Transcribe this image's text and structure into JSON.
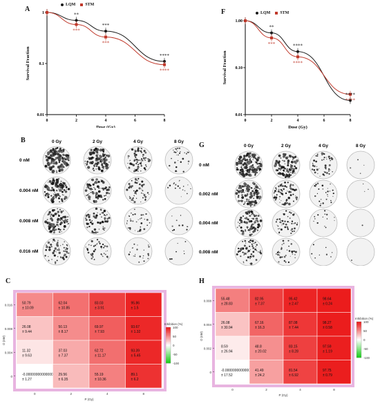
{
  "panels": {
    "A": "A",
    "F": "F",
    "B": "B",
    "G": "G",
    "C": "C",
    "H": "H"
  },
  "legend": {
    "lqm": "LQM",
    "stm": "STM",
    "lqm_color": "#1a1a1a",
    "stm_color": "#c0392b"
  },
  "chart_data": [
    {
      "id": "A",
      "type": "line",
      "xlabel": "Dose (Gy)",
      "ylabel": "Survival Fraction",
      "xlim": [
        0,
        8
      ],
      "ylim": [
        0.01,
        1
      ],
      "yscale": "log",
      "x_ticks": [
        "0",
        "2",
        "4",
        "6",
        "8"
      ],
      "y_ticks": [
        "1",
        "0.1",
        "0.01"
      ],
      "series": [
        {
          "name": "LQM",
          "x": [
            0,
            2,
            4,
            8
          ],
          "values": [
            1.0,
            0.7,
            0.43,
            0.11
          ],
          "marker": "circle",
          "color": "#1a1a1a"
        },
        {
          "name": "STM",
          "x": [
            0,
            2,
            4,
            8
          ],
          "values": [
            1.0,
            0.58,
            0.33,
            0.095
          ],
          "marker": "square",
          "color": "#c0392b"
        }
      ],
      "annotations": [
        {
          "x": 2,
          "above": "**",
          "below": "***"
        },
        {
          "x": 4,
          "above": "***",
          "below": "***"
        },
        {
          "x": 8,
          "above": "****",
          "below": "****"
        }
      ]
    },
    {
      "id": "F",
      "type": "line",
      "xlabel": "Dose (Gy)",
      "ylabel": "Survival Fraction",
      "xlim": [
        0,
        8
      ],
      "ylim": [
        0.01,
        1
      ],
      "yscale": "log",
      "x_ticks": [
        "0",
        "2",
        "4",
        "6",
        "8"
      ],
      "y_ticks": [
        "1.00",
        "0.10",
        "0.01"
      ],
      "series": [
        {
          "name": "LQM",
          "x": [
            0,
            2,
            4,
            8
          ],
          "values": [
            1.0,
            0.55,
            0.22,
            0.02
          ],
          "marker": "circle",
          "color": "#1a1a1a"
        },
        {
          "name": "STM",
          "x": [
            0,
            2,
            4,
            8
          ],
          "values": [
            1.0,
            0.43,
            0.17,
            0.027
          ],
          "marker": "square",
          "color": "#c0392b"
        }
      ],
      "annotations": [
        {
          "x": 2,
          "above": "**",
          "below": "***"
        },
        {
          "x": 4,
          "above": "****",
          "below": "****"
        },
        {
          "x": 8,
          "above": "****",
          "below": "****"
        }
      ]
    },
    {
      "id": "C",
      "type": "heatmap",
      "xlabel": "P (Gy)",
      "ylabel": "O (nM)",
      "x_ticks": [
        "0",
        "2",
        "4",
        "8"
      ],
      "y_ticks": [
        "0.016",
        "0.008",
        "0.004",
        "0"
      ],
      "colorbar_title": "Inhibition (%)",
      "colorbar_ticks": [
        "100",
        "50",
        "0",
        "-50",
        "-100"
      ],
      "cells": [
        [
          {
            "v": 50.79,
            "t": "50.79",
            "s": "± 10.09"
          },
          {
            "v": 62.04,
            "t": "62.04",
            "s": "± 10.85"
          },
          {
            "v": 83.03,
            "t": "83.03",
            "s": "± 3.91"
          },
          {
            "v": 95.86,
            "t": "95.86",
            "s": "± 1.5"
          }
        ],
        [
          {
            "v": 26.08,
            "t": "26.08",
            "s": "± 9.44"
          },
          {
            "v": 50.13,
            "t": "50.13",
            "s": "± 8.17"
          },
          {
            "v": 69.97,
            "t": "69.97",
            "s": "± 7.93"
          },
          {
            "v": 93.67,
            "t": "93.67",
            "s": "± 1.32"
          }
        ],
        [
          {
            "v": 11.32,
            "t": "11.32",
            "s": "± 9.63"
          },
          {
            "v": 37.03,
            "t": "37.03",
            "s": "± 7.37"
          },
          {
            "v": 62.72,
            "t": "62.72",
            "s": "± 11.17"
          },
          {
            "v": 93.39,
            "t": "93.39",
            "s": "± 5.45"
          }
        ],
        [
          {
            "v": 0,
            "t": "-0.0000000000000095",
            "s": "± 1.27"
          },
          {
            "v": 29.56,
            "t": "29.56",
            "s": "± 6.35"
          },
          {
            "v": 55.19,
            "t": "55.19",
            "s": "± 10.36"
          },
          {
            "v": 89.1,
            "t": "89.1",
            "s": "± 6.2"
          }
        ]
      ]
    },
    {
      "id": "H",
      "type": "heatmap",
      "xlabel": "P (Gy)",
      "ylabel": "O (nM)",
      "x_ticks": [
        "0",
        "2",
        "4",
        "8"
      ],
      "y_ticks": [
        "0.008",
        "0.004",
        "0.002",
        "0"
      ],
      "colorbar_title": "Inhibition (%)",
      "colorbar_ticks": [
        "100",
        "50",
        "0",
        "-50",
        "-100"
      ],
      "cells": [
        [
          {
            "v": 55.48,
            "t": "55.48",
            "s": "± 28.83"
          },
          {
            "v": 82.95,
            "t": "82.95",
            "s": "± 7.37"
          },
          {
            "v": 95.42,
            "t": "95.42",
            "s": "± 2.47"
          },
          {
            "v": 98.64,
            "t": "98.64",
            "s": "± 0.24"
          }
        ],
        [
          {
            "v": 26.08,
            "t": "26.08",
            "s": "± 30.94"
          },
          {
            "v": 67.16,
            "t": "67.16",
            "s": "± 16.3"
          },
          {
            "v": 87.08,
            "t": "87.08",
            "s": "± 7.44"
          },
          {
            "v": 98.27,
            "t": "98.27",
            "s": "± 0.58"
          }
        ],
        [
          {
            "v": 8.59,
            "t": "8.59",
            "s": "± 26.94"
          },
          {
            "v": 48.8,
            "t": "48.8",
            "s": "± 20.02"
          },
          {
            "v": 83.15,
            "t": "83.15",
            "s": "± 8.28"
          },
          {
            "v": 97.59,
            "t": "97.59",
            "s": "± 1.19"
          }
        ],
        [
          {
            "v": 0,
            "t": "-0.0000000000000047",
            "s": "± 17.52"
          },
          {
            "v": 41.49,
            "t": "41.49",
            "s": "± 24.2"
          },
          {
            "v": 81.54,
            "t": "81.54",
            "s": "± 6.92"
          },
          {
            "v": 97.75,
            "t": "97.75",
            "s": "± 0.79"
          }
        ]
      ]
    }
  ],
  "dishesB": {
    "cols": [
      "0 Gy",
      "2 Gy",
      "4 Gy",
      "8 Gy"
    ],
    "rows": [
      "0 nM",
      "0.004 nM",
      "0.008 nM",
      "0.016 nM"
    ],
    "density": [
      [
        0.9,
        0.75,
        0.5,
        0.2
      ],
      [
        0.8,
        0.6,
        0.35,
        0.12
      ],
      [
        0.65,
        0.45,
        0.25,
        0.08
      ],
      [
        0.45,
        0.3,
        0.15,
        0.05
      ]
    ]
  },
  "dishesG": {
    "cols": [
      "0 Gy",
      "2 Gy",
      "4 Gy",
      "8 Gy"
    ],
    "rows": [
      "0 nM",
      "0.002 nM",
      "0.004 nM",
      "0.008 nM"
    ],
    "density": [
      [
        0.9,
        0.7,
        0.35,
        0.03
      ],
      [
        0.75,
        0.5,
        0.2,
        0.02
      ],
      [
        0.6,
        0.35,
        0.1,
        0.01
      ],
      [
        0.45,
        0.25,
        0.06,
        0.01
      ]
    ]
  }
}
